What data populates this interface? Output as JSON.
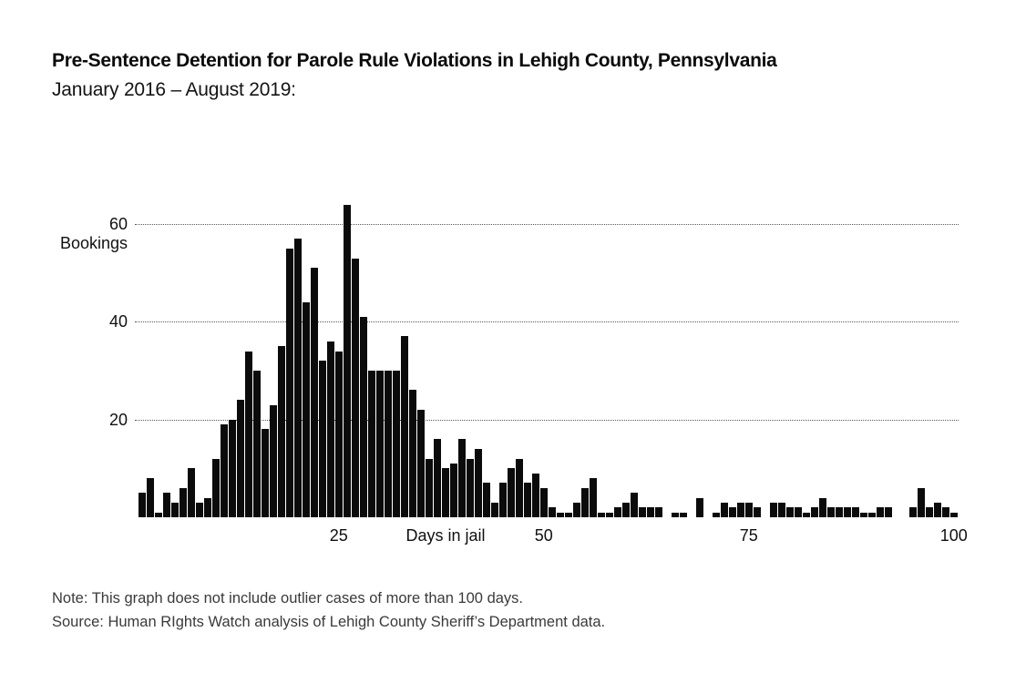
{
  "header": {
    "title": "Pre-Sentence Detention for Parole Rule Violations in Lehigh County, Pennsylvania",
    "subtitle": "January 2016 – August 2019:"
  },
  "chart_data": {
    "type": "bar",
    "title": "Pre-Sentence Detention for Parole Rule Violations in Lehigh County, Pennsylvania, January 2016 – August 2019",
    "xlabel": "Days in jail",
    "ylabel": "Bookings",
    "x_ticks": [
      25,
      50,
      75,
      100
    ],
    "y_ticks": [
      20,
      40,
      60
    ],
    "xlim": [
      1,
      100
    ],
    "ylim": [
      0,
      65
    ],
    "grid": "dotted horizontal lines at y ticks",
    "bar_color": "#0b0b0b",
    "grid_color": "#595959",
    "x_description": "days in jail, one bar per day from 1 to 100",
    "values": [
      5,
      8,
      1,
      5,
      3,
      6,
      10,
      3,
      4,
      12,
      19,
      20,
      24,
      34,
      30,
      18,
      23,
      35,
      55,
      57,
      44,
      51,
      32,
      36,
      34,
      64,
      53,
      41,
      30,
      30,
      30,
      30,
      37,
      26,
      22,
      12,
      16,
      10,
      11,
      16,
      12,
      14,
      7,
      3,
      7,
      10,
      12,
      7,
      9,
      6,
      2,
      1,
      1,
      3,
      6,
      8,
      1,
      1,
      2,
      3,
      5,
      2,
      2,
      2,
      0,
      1,
      1,
      0,
      4,
      0,
      1,
      3,
      2,
      3,
      3,
      2,
      0,
      3,
      3,
      2,
      2,
      1,
      2,
      4,
      2,
      2,
      2,
      2,
      1,
      1,
      2,
      2,
      0,
      0,
      2,
      6,
      2,
      3,
      2,
      1
    ]
  },
  "footer": {
    "note": "Note: This graph does not include outlier cases of more than 100 days.",
    "source": "Source: Human RIghts Watch analysis of Lehigh County Sheriff’s Department data."
  }
}
